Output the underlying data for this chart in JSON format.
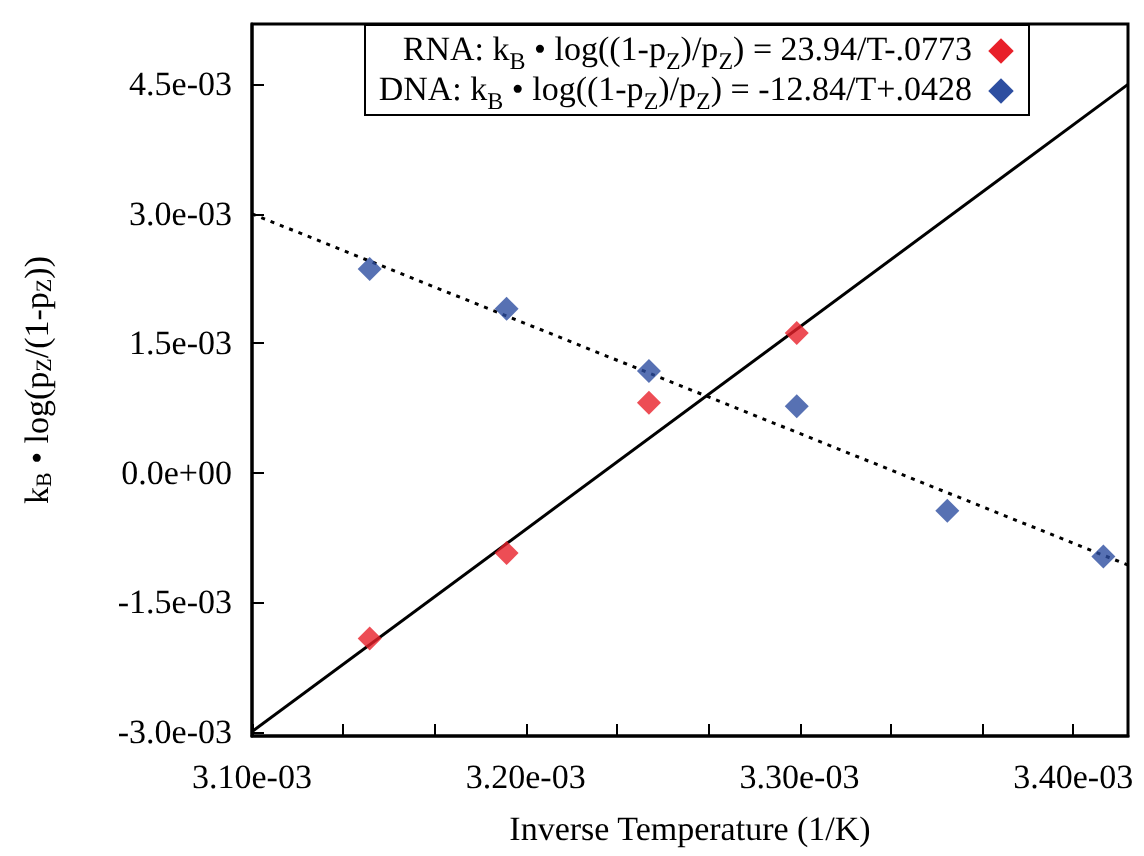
{
  "chart_data": {
    "type": "scatter",
    "xlabel": "Inverse Temperature (1/K)",
    "ylabel": "k$_{B}$ • log(p$_{Z}$/(1-p$_{Z}$))",
    "series": [
      {
        "name": "RNA: k$_{B}$ • log((1-p$_{Z}$)/p$_{Z}$) = 23.94/T-.0773",
        "color": "#e8202a",
        "marker": "diamond",
        "x": [
          0.003143,
          0.003193,
          0.003245,
          0.003299
        ],
        "values": [
          -0.00192,
          -0.00093,
          0.00081,
          0.00162
        ]
      },
      {
        "name": "DNA: k$_{B}$ • log((1-p$_{Z}$)/p$_{Z}$) = -12.84/T+.0428",
        "color": "#2d4ea0",
        "marker": "diamond",
        "x": [
          0.003143,
          0.003193,
          0.003245,
          0.003299,
          0.003354,
          0.003411
        ],
        "values": [
          0.00236,
          0.0019,
          0.00118,
          0.00077,
          -0.00044,
          -0.00097
        ]
      },
      {
        "type": "line",
        "color": "#000000",
        "line_style": "solid",
        "marker": "none",
        "x": [
          0.0031,
          0.00342
        ],
        "values": [
          -0.003,
          0.0045
        ]
      },
      {
        "type": "line",
        "color": "#000000",
        "line_style": "dotted",
        "marker": "none",
        "x": [
          0.0031,
          0.00342
        ],
        "values": [
          0.003,
          -0.00107
        ]
      }
    ],
    "xlim": [
      0.0031,
      0.00342
    ],
    "xticks": [
      {
        "value": 0.0031,
        "label": "3.10e-03"
      },
      {
        "value": 0.0031333,
        "label": null
      },
      {
        "value": 0.0031667,
        "label": null
      },
      {
        "value": 0.0032,
        "label": "3.20e-03"
      },
      {
        "value": 0.0032333,
        "label": null
      },
      {
        "value": 0.0032667,
        "label": null
      },
      {
        "value": 0.0033,
        "label": "3.30e-03"
      },
      {
        "value": 0.0033333,
        "label": null
      },
      {
        "value": 0.0033667,
        "label": null
      },
      {
        "value": 0.0034,
        "label": "3.40e-03"
      }
    ],
    "ylim": [
      -0.00305,
      0.0052
    ],
    "yticks": [
      {
        "value": -0.003,
        "label": "-3.0e-03"
      },
      {
        "value": -0.0015,
        "label": "-1.5e-03"
      },
      {
        "value": 0,
        "label": "0.0e+00"
      },
      {
        "value": 0.0015,
        "label": "1.5e-03"
      },
      {
        "value": 0.003,
        "label": "3.0e-03"
      },
      {
        "value": 0.0045,
        "label": "4.5e-03"
      }
    ],
    "grid": false,
    "legend": "top right"
  }
}
